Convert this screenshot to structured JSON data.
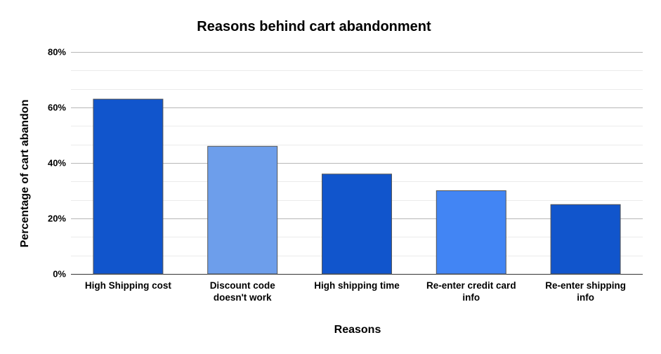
{
  "chart_data": {
    "type": "bar",
    "title": "Reasons behind cart abandonment",
    "xlabel": "Reasons",
    "ylabel": "Percentage of cart abandon",
    "categories": [
      [
        "High Shipping cost"
      ],
      [
        "Discount code",
        "doesn't work"
      ],
      [
        "High shipping time"
      ],
      [
        "Re-enter credit card",
        "info"
      ],
      [
        "Re-enter shipping",
        "info"
      ]
    ],
    "values": [
      63,
      46,
      36,
      30,
      25
    ],
    "ylim": [
      0,
      80
    ],
    "yticks": [
      0,
      20,
      40,
      60,
      80
    ],
    "ytick_labels": [
      "0%",
      "20%",
      "40%",
      "60%",
      "80%"
    ],
    "grid": true,
    "legend": "none",
    "colors": [
      "#1155cc",
      "#6d9eeb",
      "#1155cc",
      "#4285f4",
      "#1155cc"
    ],
    "bar_edge_color": "#555555",
    "gridline_major_color": "#b7b7b7",
    "gridline_minor_color": "#ebebeb"
  }
}
